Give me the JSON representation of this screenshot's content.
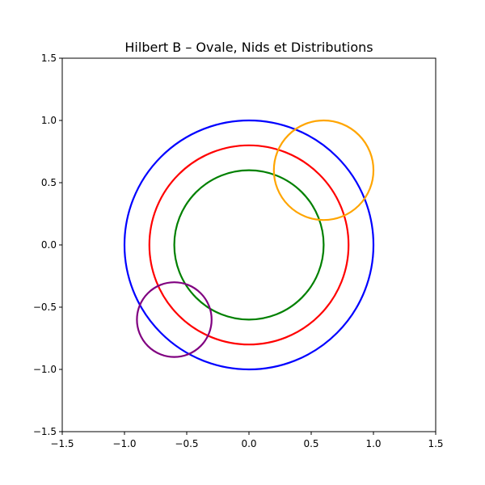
{
  "chart_data": {
    "type": "line",
    "title": "Hilbert B – Ovale, Nids et Distributions",
    "xlabel": "",
    "ylabel": "",
    "xlim": [
      -1.5,
      1.5
    ],
    "ylim": [
      -1.5,
      1.5
    ],
    "grid": false,
    "x_ticks": [
      {
        "value": -1.5,
        "label": "−1.5"
      },
      {
        "value": -1.0,
        "label": "−1.0"
      },
      {
        "value": -0.5,
        "label": "−0.5"
      },
      {
        "value": 0.0,
        "label": "0.0"
      },
      {
        "value": 0.5,
        "label": "0.5"
      },
      {
        "value": 1.0,
        "label": "1.0"
      },
      {
        "value": 1.5,
        "label": "1.5"
      }
    ],
    "y_ticks": [
      {
        "value": -1.5,
        "label": "−1.5"
      },
      {
        "value": -1.0,
        "label": "−1.0"
      },
      {
        "value": -0.5,
        "label": "−0.5"
      },
      {
        "value": 0.0,
        "label": "0.0"
      },
      {
        "value": 0.5,
        "label": "0.5"
      },
      {
        "value": 1.0,
        "label": "1.0"
      },
      {
        "value": 1.5,
        "label": "1.5"
      }
    ],
    "circles": [
      {
        "cx": 0.0,
        "cy": 0.0,
        "r": 1.0,
        "color": "#0000ff"
      },
      {
        "cx": 0.0,
        "cy": 0.0,
        "r": 0.8,
        "color": "#ff0000"
      },
      {
        "cx": 0.0,
        "cy": 0.0,
        "r": 0.6,
        "color": "#008000"
      },
      {
        "cx": 0.6,
        "cy": 0.6,
        "r": 0.4,
        "color": "#ffa500"
      },
      {
        "cx": -0.6,
        "cy": -0.6,
        "r": 0.3,
        "color": "#800080"
      }
    ]
  }
}
